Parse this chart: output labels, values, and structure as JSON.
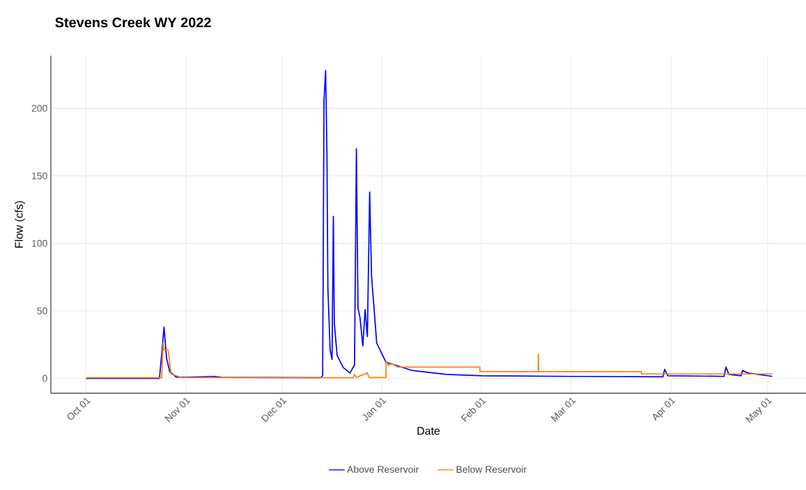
{
  "chart_data": {
    "type": "line",
    "title": "Stevens Creek WY 2022",
    "xlabel": "Date",
    "ylabel": "Flow (cfs)",
    "xlim": [
      "2021-09-20",
      "2022-05-13"
    ],
    "xticks": [
      {
        "value": "2021-10-01",
        "label": "Oct 01"
      },
      {
        "value": "2021-11-01",
        "label": "Nov 01"
      },
      {
        "value": "2021-12-01",
        "label": "Dec 01"
      },
      {
        "value": "2022-01-01",
        "label": "Jan 01"
      },
      {
        "value": "2022-02-01",
        "label": "Feb 01"
      },
      {
        "value": "2022-03-01",
        "label": "Mar 01"
      },
      {
        "value": "2022-04-01",
        "label": "Apr 01"
      },
      {
        "value": "2022-05-01",
        "label": "May 01"
      }
    ],
    "ylim": [
      -11,
      239
    ],
    "yticks": [
      0,
      50,
      100,
      150,
      200
    ],
    "grid": true,
    "legend": "bottom",
    "marker": "none",
    "line_style": "solid",
    "series": [
      {
        "name": "Above Reservoir",
        "color": "#0000ff",
        "x": [
          "2021-10-01",
          "2021-10-23T19:00",
          "2021-10-24T14:00",
          "2021-10-25T05:00",
          "2021-10-26",
          "2021-10-27",
          "2021-10-29",
          "2021-11-01",
          "2021-11-10",
          "2021-11-12",
          "2021-12-13",
          "2021-12-13T14:00",
          "2021-12-14",
          "2021-12-14T12:00",
          "2021-12-14T22:00",
          "2021-12-15T05:00",
          "2021-12-15T22:00",
          "2021-12-16T12:00",
          "2021-12-16T22:00",
          "2021-12-17T05:00",
          "2021-12-18T02:00",
          "2021-12-20",
          "2021-12-22T02:00",
          "2021-12-23T12:00",
          "2021-12-24T02:00",
          "2021-12-24T14:00",
          "2021-12-25T05:00",
          "2021-12-26T02:00",
          "2021-12-26T19:00",
          "2021-12-27T12:00",
          "2021-12-28T05:00",
          "2021-12-28T19:00",
          "2021-12-30T10:00",
          "2022-01-02T07:00",
          "2022-01-10T05:00",
          "2022-01-21",
          "2022-02-01",
          "2022-03-01",
          "2022-03-29T12:00",
          "2022-03-30",
          "2022-03-31",
          "2022-04-17T12:00",
          "2022-04-18T02:00",
          "2022-04-19",
          "2022-04-22T19:00",
          "2022-04-23T05:00",
          "2022-04-25",
          "2022-05-02T12:00"
        ],
        "values": [
          0,
          0,
          20,
          38,
          15,
          5,
          1,
          0.8,
          1.5,
          0.8,
          0.5,
          2,
          206,
          228,
          167,
          67,
          21,
          14,
          120,
          41,
          17,
          8,
          4,
          10,
          170,
          52,
          45,
          24,
          51,
          31,
          138,
          76,
          26,
          12,
          6,
          3,
          2,
          1.5,
          1.2,
          6.7,
          2,
          1.5,
          8.4,
          3,
          2,
          5.8,
          4,
          1.5
        ]
      },
      {
        "name": "Below Reservoir",
        "color": "#ff7f0e",
        "x": [
          "2021-10-01",
          "2021-10-24T12:00",
          "2021-10-24T22:00",
          "2021-10-25T06:00",
          "2021-10-26T12:00",
          "2021-10-27T10:00",
          "2021-10-30T17:00",
          "2021-12-23",
          "2021-12-23T12:00",
          "2021-12-24",
          "2021-12-27T12:00",
          "2021-12-28",
          "2022-01-02T06:00",
          "2022-01-02T08:00",
          "2022-01-03",
          "2022-01-04",
          "2022-01-05T12:00",
          "2022-01-06",
          "2022-01-31T12:00",
          "2022-01-31T13:00",
          "2022-02-18T16:00",
          "2022-02-18T17:00",
          "2022-02-18T20:00",
          "2022-03-22T19:00",
          "2022-03-22T20:00",
          "2022-05-02T12:00"
        ],
        "values": [
          0.5,
          0.5,
          26,
          21,
          21,
          3.3,
          0.6,
          0.5,
          3,
          0.7,
          4,
          0.7,
          0.7,
          13,
          9.5,
          11,
          9,
          8.4,
          8.4,
          5,
          5,
          18,
          5,
          5,
          3.3,
          3.3
        ]
      }
    ]
  }
}
